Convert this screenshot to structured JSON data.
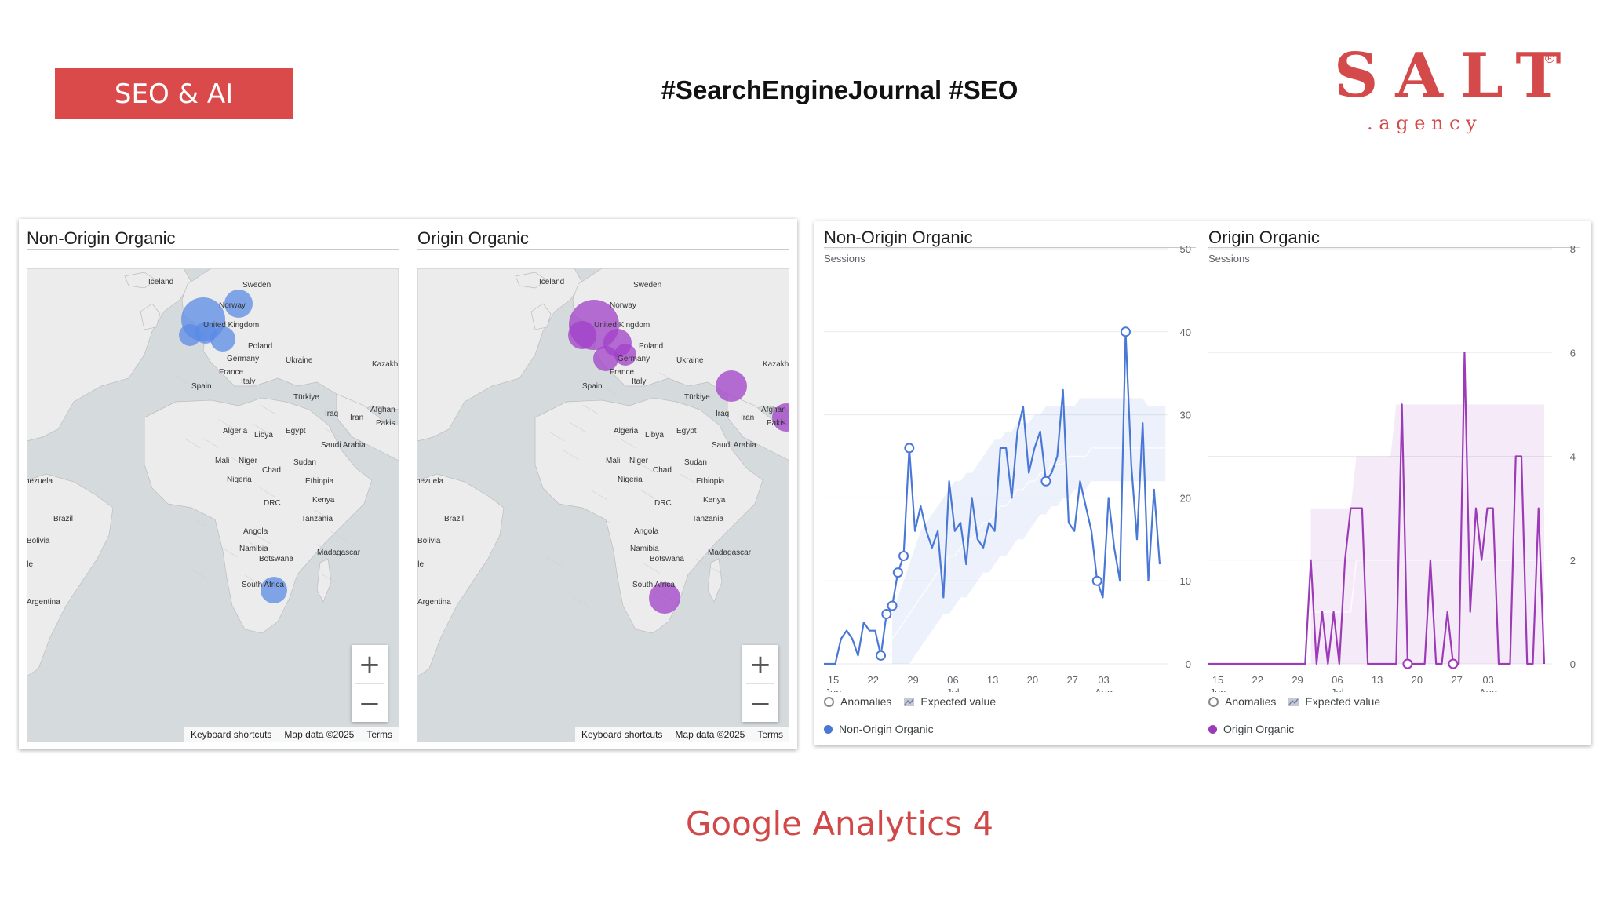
{
  "header": {
    "badge": "SEO & AI",
    "hashtags": "#SearchEngineJournal #SEO",
    "logo": {
      "word": "SALT",
      "reg": "®",
      "sub": ". a g e n c y"
    }
  },
  "maps": [
    {
      "title": "Non-Origin Organic",
      "color": "#5b8be6"
    },
    {
      "title": "Origin Organic",
      "color": "#a040c8"
    }
  ],
  "map_labels": [
    "Iceland",
    "Sweden",
    "Norway",
    "United Kingdom",
    "Poland",
    "Germany",
    "Ukraine",
    "France",
    "Kazakh",
    "Italy",
    "Spain",
    "Türkiye",
    "Iraq",
    "Iran",
    "Afghan",
    "Pakis",
    "Algeria",
    "Libya",
    "Egypt",
    "Saudi Arabia",
    "Mali",
    "Niger",
    "Chad",
    "Sudan",
    "Nigeria",
    "Ethiopia",
    "nezuela",
    "DRC",
    "Kenya",
    "Brazil",
    "Tanzania",
    "Angola",
    "Bolivia",
    "Namibia",
    "Botswana",
    "Madagascar",
    "ile",
    "South Africa",
    "Argentina"
  ],
  "map_controls": {
    "zoom_in": "+",
    "zoom_out": "−",
    "shortcuts": "Keyboard shortcuts",
    "mapdata": "Map data ©2025",
    "terms": "Terms"
  },
  "charts_ui": {
    "subtitle": "Sessions",
    "legend_anomalies": "Anomalies",
    "legend_expected": "Expected value"
  },
  "chart_data": [
    {
      "type": "line",
      "title": "Non-Origin Organic",
      "ylabel": "Sessions",
      "ylim": [
        0,
        50
      ],
      "yticks": [
        0,
        10,
        20,
        30,
        40,
        50
      ],
      "xticks": [
        {
          "top": "15",
          "bottom": "Jun"
        },
        {
          "top": "22",
          "bottom": ""
        },
        {
          "top": "29",
          "bottom": ""
        },
        {
          "top": "06",
          "bottom": "Jul"
        },
        {
          "top": "13",
          "bottom": ""
        },
        {
          "top": "20",
          "bottom": ""
        },
        {
          "top": "27",
          "bottom": ""
        },
        {
          "top": "03",
          "bottom": "Aug"
        }
      ],
      "x_days": 60,
      "series": [
        {
          "name": "Non-Origin Organic",
          "color": "#4a78d6",
          "values": [
            0,
            0,
            0,
            3,
            4,
            3,
            1,
            5,
            4,
            4,
            1,
            6,
            7,
            11,
            13,
            26,
            16,
            19,
            16,
            14,
            16,
            8,
            22,
            16,
            17,
            12,
            20,
            15,
            14,
            17,
            16,
            26,
            26,
            20,
            28,
            31,
            23,
            26,
            28,
            22,
            23,
            25,
            33,
            17,
            16,
            22,
            19,
            16,
            10,
            8,
            20,
            14,
            10,
            40,
            24,
            15,
            29,
            10,
            21,
            12
          ]
        }
      ],
      "anomaly_indices": [
        10,
        11,
        12,
        13,
        14,
        15,
        39,
        48,
        53
      ],
      "expected_band": {
        "start": 12,
        "end": 60,
        "lower": [
          0,
          0,
          0,
          0,
          1,
          2,
          3,
          4,
          5,
          6,
          6,
          7,
          8,
          8,
          9,
          10,
          11,
          11,
          12,
          13,
          13,
          14,
          15,
          15,
          16,
          17,
          18,
          18,
          19,
          19,
          20,
          20,
          21,
          21,
          21,
          22,
          22,
          22,
          22,
          22,
          22,
          22,
          22,
          22,
          22,
          22,
          22,
          22,
          22
        ],
        "upper": [
          6,
          8,
          10,
          12,
          14,
          16,
          17,
          18,
          19,
          20,
          21,
          22,
          22,
          23,
          23,
          24,
          25,
          26,
          27,
          27,
          28,
          28,
          29,
          29,
          29,
          30,
          30,
          31,
          31,
          31,
          31,
          31,
          31,
          32,
          32,
          32,
          32,
          32,
          32,
          32,
          32,
          32,
          32,
          32,
          32,
          31,
          31,
          31,
          31
        ],
        "center": [
          3,
          4,
          5,
          6,
          7,
          8,
          9,
          10,
          11,
          12,
          13,
          13,
          14,
          15,
          15,
          16,
          17,
          17,
          18,
          19,
          19,
          20,
          21,
          21,
          22,
          22,
          23,
          23,
          24,
          24,
          24,
          25,
          25,
          25,
          25,
          26,
          26,
          26,
          26,
          26,
          26,
          26,
          26,
          26,
          26,
          26,
          26,
          26,
          26
        ]
      }
    },
    {
      "type": "line",
      "title": "Origin Organic",
      "ylabel": "Sessions",
      "ylim": [
        0,
        8
      ],
      "yticks": [
        0,
        2,
        4,
        6,
        8
      ],
      "xticks": [
        {
          "top": "15",
          "bottom": "Jun"
        },
        {
          "top": "22",
          "bottom": ""
        },
        {
          "top": "29",
          "bottom": ""
        },
        {
          "top": "06",
          "bottom": "Jul"
        },
        {
          "top": "13",
          "bottom": ""
        },
        {
          "top": "20",
          "bottom": ""
        },
        {
          "top": "27",
          "bottom": ""
        },
        {
          "top": "03",
          "bottom": "Aug"
        }
      ],
      "x_days": 60,
      "series": [
        {
          "name": "Origin Organic",
          "color": "#9c3ab8",
          "values": [
            0,
            0,
            0,
            0,
            0,
            0,
            0,
            0,
            0,
            0,
            0,
            0,
            0,
            0,
            0,
            0,
            0,
            0,
            2,
            0,
            1,
            0,
            1,
            0,
            2,
            3,
            3,
            3,
            0,
            0,
            0,
            0,
            0,
            0,
            5,
            0,
            0,
            0,
            0,
            2,
            0,
            0,
            1,
            0,
            0,
            6,
            1,
            3,
            2,
            3,
            3,
            0,
            0,
            0,
            4,
            4,
            0,
            0,
            3,
            0
          ]
        }
      ],
      "anomaly_indices": [
        35,
        43
      ],
      "expected_band": {
        "start": 18,
        "end": 60,
        "lower": [
          0,
          0,
          0,
          0,
          0,
          0,
          0,
          0,
          0,
          0,
          0,
          0,
          0,
          0,
          0,
          0,
          0,
          0,
          0,
          0,
          0,
          0,
          0,
          0,
          0,
          0,
          0,
          0,
          0,
          0,
          0,
          0,
          0,
          0,
          0,
          0,
          0,
          0,
          0,
          0,
          0,
          0
        ],
        "upper": [
          3,
          3,
          3,
          3,
          3,
          3,
          3,
          3,
          4,
          4,
          4,
          4,
          4,
          4,
          4,
          5,
          5,
          5,
          5,
          5,
          5,
          5,
          5,
          5,
          5,
          5,
          5,
          5,
          5,
          5,
          5,
          5,
          5,
          5,
          5,
          5,
          5,
          5,
          5,
          5,
          5,
          5
        ],
        "center": [
          1,
          1,
          1,
          1,
          1,
          1,
          1,
          1,
          2,
          2,
          2,
          2,
          2,
          2,
          2,
          2,
          2,
          2,
          2,
          2,
          2,
          2,
          2,
          2,
          2,
          2,
          2,
          2,
          2,
          2,
          2,
          2,
          2,
          2,
          2,
          2,
          2,
          2,
          2,
          2,
          2,
          2
        ]
      }
    }
  ],
  "footer": "Google Analytics 4"
}
